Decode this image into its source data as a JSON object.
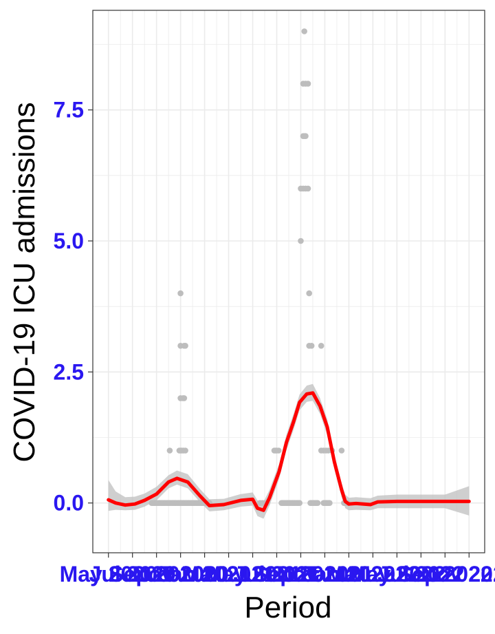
{
  "colors": {
    "tick_label": "#2a17f0",
    "smooth_line": "#ff0000",
    "ribbon": "#bfbfbf",
    "points": "#bdbdbd",
    "grid": "#ebebeb",
    "panel_border": "#333333"
  },
  "chart_data": {
    "type": "scatter",
    "title": "",
    "xlabel": "Period",
    "ylabel": "COVID-19 ICU admissions",
    "ylim": [
      -0.95,
      9.4
    ],
    "yticks": [
      "0.0",
      "2.5",
      "5.0",
      "7.5"
    ],
    "ytick_values": [
      0,
      2.5,
      5,
      7.5
    ],
    "grid": true,
    "legend": "none",
    "x_domain": [
      -0.65,
      15.65
    ],
    "xtick_labels": [
      "May 2020",
      "Jul 2020",
      "Sep 2020",
      "Nov 2020",
      "Jan 2021",
      "Mar 2021",
      "May 2021",
      "Jul 2021",
      "Sep 2021",
      "Nov 2021",
      "Jan 2022",
      "Mar 2022",
      "May 2022",
      "Jul 2022",
      "Sep 2022",
      "Nov 2022"
    ],
    "xtick_positions": [
      0,
      1,
      2,
      3,
      4,
      5,
      6,
      7,
      8,
      9,
      10,
      11,
      12,
      13,
      14,
      15
    ],
    "series": [
      {
        "type": "points",
        "points": [
          [
            2.55,
            1
          ],
          [
            2.95,
            1
          ],
          [
            3.0,
            1
          ],
          [
            3.05,
            1
          ],
          [
            3.12,
            1
          ],
          [
            3.2,
            1
          ],
          [
            3.0,
            2
          ],
          [
            3.1,
            2
          ],
          [
            3.15,
            2
          ],
          [
            3.0,
            3
          ],
          [
            3.15,
            3
          ],
          [
            3.2,
            3
          ],
          [
            3.0,
            4
          ],
          [
            6.9,
            1
          ],
          [
            6.95,
            1
          ],
          [
            7.0,
            1
          ],
          [
            7.08,
            1
          ],
          [
            8.0,
            5
          ],
          [
            8.0,
            6
          ],
          [
            8.1,
            6
          ],
          [
            8.2,
            6
          ],
          [
            8.3,
            6
          ],
          [
            8.1,
            7
          ],
          [
            8.15,
            7
          ],
          [
            8.2,
            7
          ],
          [
            8.1,
            8
          ],
          [
            8.2,
            8
          ],
          [
            8.3,
            8
          ],
          [
            8.15,
            9
          ],
          [
            8.35,
            4
          ],
          [
            8.35,
            3
          ],
          [
            8.45,
            3
          ],
          [
            8.85,
            3
          ],
          [
            8.85,
            1
          ],
          [
            8.95,
            1
          ],
          [
            9.05,
            1
          ],
          [
            9.15,
            1
          ],
          [
            9.3,
            1
          ],
          [
            9.7,
            1
          ],
          [
            1.8,
            0
          ],
          [
            1.85,
            0
          ],
          [
            1.9,
            0
          ],
          [
            1.95,
            0
          ],
          [
            2.0,
            0
          ],
          [
            2.05,
            0
          ],
          [
            2.1,
            0
          ],
          [
            2.15,
            0
          ],
          [
            2.2,
            0
          ],
          [
            2.25,
            0
          ],
          [
            2.3,
            0
          ],
          [
            2.35,
            0
          ],
          [
            2.4,
            0
          ],
          [
            2.45,
            0
          ],
          [
            2.5,
            0
          ],
          [
            2.55,
            0
          ],
          [
            2.6,
            0
          ],
          [
            2.65,
            0
          ],
          [
            2.7,
            0
          ],
          [
            2.75,
            0
          ],
          [
            2.8,
            0
          ],
          [
            2.85,
            0
          ],
          [
            2.9,
            0
          ],
          [
            2.95,
            0
          ],
          [
            3.0,
            0
          ],
          [
            3.05,
            0
          ],
          [
            3.1,
            0
          ],
          [
            3.15,
            0
          ],
          [
            3.2,
            0
          ],
          [
            3.25,
            0
          ],
          [
            3.3,
            0
          ],
          [
            3.35,
            0
          ],
          [
            3.4,
            0
          ],
          [
            3.45,
            0
          ],
          [
            3.5,
            0
          ],
          [
            3.55,
            0
          ],
          [
            3.6,
            0
          ],
          [
            3.65,
            0
          ],
          [
            3.7,
            0
          ],
          [
            3.75,
            0
          ],
          [
            3.8,
            0
          ],
          [
            3.85,
            0
          ],
          [
            3.9,
            0
          ],
          [
            3.95,
            0
          ],
          [
            4.0,
            0
          ],
          [
            4.05,
            0
          ],
          [
            4.1,
            0
          ],
          [
            4.15,
            0
          ],
          [
            4.2,
            0
          ],
          [
            6.3,
            0
          ],
          [
            6.4,
            0
          ],
          [
            6.5,
            0
          ],
          [
            6.6,
            0
          ],
          [
            7.2,
            0
          ],
          [
            7.25,
            0
          ],
          [
            7.3,
            0
          ],
          [
            7.35,
            0
          ],
          [
            7.4,
            0
          ],
          [
            7.45,
            0
          ],
          [
            7.5,
            0
          ],
          [
            7.55,
            0
          ],
          [
            7.6,
            0
          ],
          [
            7.65,
            0
          ],
          [
            7.7,
            0
          ],
          [
            7.75,
            0
          ],
          [
            7.8,
            0
          ],
          [
            7.85,
            0
          ],
          [
            7.9,
            0
          ],
          [
            7.95,
            0
          ],
          [
            8.4,
            0
          ],
          [
            8.45,
            0
          ],
          [
            8.5,
            0
          ],
          [
            8.55,
            0
          ],
          [
            8.6,
            0
          ],
          [
            8.65,
            0
          ],
          [
            8.7,
            0
          ],
          [
            8.95,
            0
          ],
          [
            9.0,
            0
          ],
          [
            9.05,
            0
          ],
          [
            9.1,
            0
          ],
          [
            9.15,
            0
          ],
          [
            9.2,
            0
          ],
          [
            9.8,
            0
          ],
          [
            9.85,
            0
          ],
          [
            9.9,
            0
          ],
          [
            9.95,
            0
          ]
        ]
      },
      {
        "type": "smooth",
        "x": [
          0,
          0.3,
          0.7,
          1.1,
          1.5,
          2.0,
          2.5,
          2.85,
          3.3,
          3.8,
          4.2,
          4.8,
          5.5,
          6.0,
          6.2,
          6.45,
          6.7,
          6.9,
          7.1,
          7.4,
          7.7,
          7.95,
          8.25,
          8.5,
          8.8,
          9.1,
          9.4,
          9.7,
          9.85,
          10.0,
          10.3,
          10.9,
          11.2,
          12.0,
          13.0,
          14.0,
          15.0
        ],
        "y": [
          0.06,
          0.0,
          -0.04,
          -0.02,
          0.05,
          0.17,
          0.4,
          0.47,
          0.4,
          0.14,
          -0.05,
          -0.03,
          0.05,
          0.07,
          -0.1,
          -0.14,
          0.1,
          0.35,
          0.6,
          1.15,
          1.55,
          1.92,
          2.08,
          2.1,
          1.85,
          1.45,
          0.78,
          0.25,
          0.03,
          -0.02,
          -0.01,
          -0.03,
          0.02,
          0.03,
          0.03,
          0.03,
          0.03
        ],
        "lower": [
          -0.15,
          -0.13,
          -0.14,
          -0.13,
          -0.07,
          0.05,
          0.28,
          0.35,
          0.28,
          0.02,
          -0.16,
          -0.14,
          -0.07,
          -0.05,
          -0.25,
          -0.3,
          -0.05,
          0.2,
          0.46,
          1.0,
          1.4,
          1.77,
          1.93,
          1.95,
          1.7,
          1.3,
          0.64,
          0.11,
          -0.1,
          -0.14,
          -0.13,
          -0.14,
          -0.1,
          -0.1,
          -0.1,
          -0.1,
          -0.24
        ],
        "upper": [
          0.44,
          0.22,
          0.11,
          0.12,
          0.18,
          0.31,
          0.53,
          0.62,
          0.55,
          0.27,
          0.07,
          0.08,
          0.17,
          0.2,
          0.05,
          0.02,
          0.25,
          0.5,
          0.74,
          1.3,
          1.7,
          2.07,
          2.24,
          2.27,
          2.0,
          1.6,
          0.92,
          0.38,
          0.16,
          0.1,
          0.11,
          0.09,
          0.14,
          0.16,
          0.16,
          0.16,
          0.32
        ]
      }
    ]
  }
}
